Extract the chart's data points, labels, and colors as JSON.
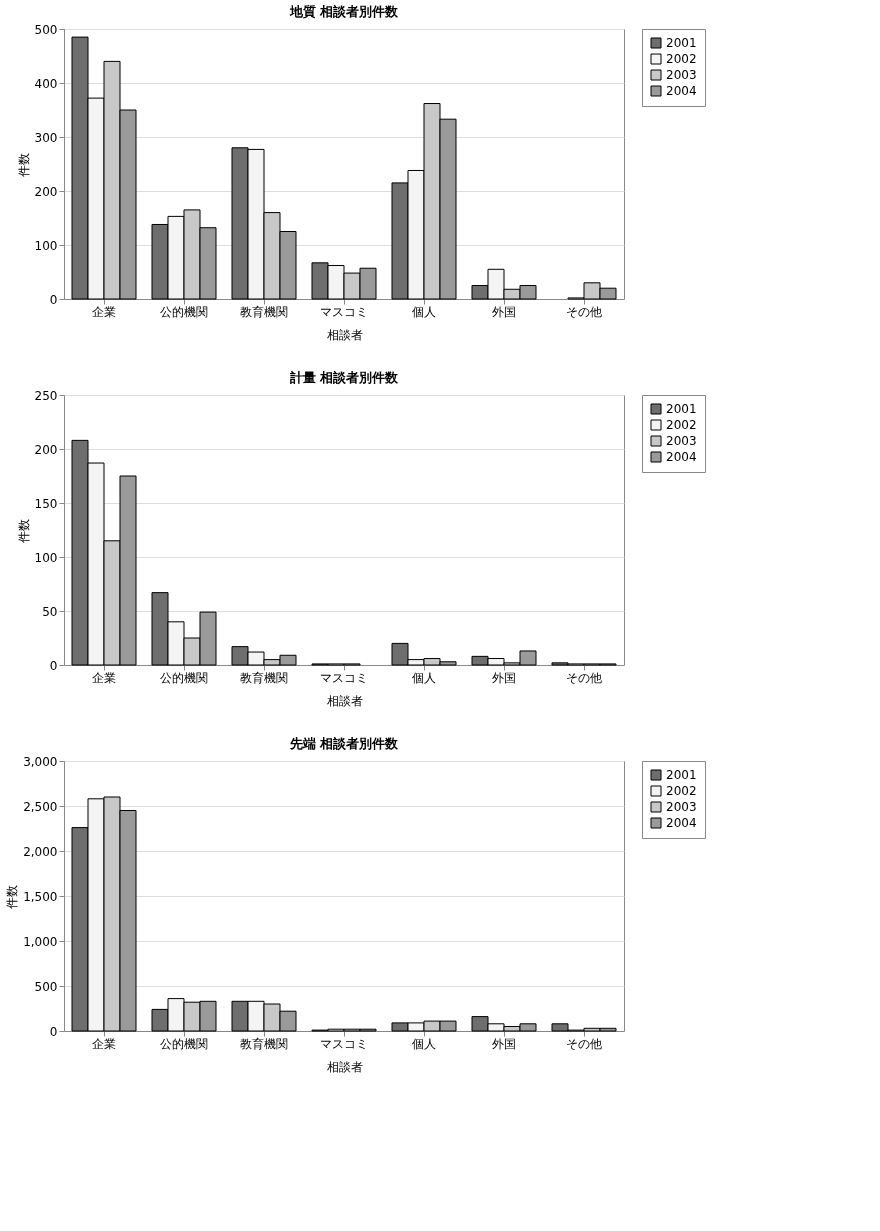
{
  "chart_data": [
    {
      "type": "bar",
      "title": "地質 相談者別件数",
      "xlabel": "相談者",
      "ylabel": "件数",
      "categories": [
        "企業",
        "公的機関",
        "教育機関",
        "マスコミ",
        "個人",
        "外国",
        "その他"
      ],
      "ylim": [
        0,
        500
      ],
      "yticks": [
        0,
        100,
        200,
        300,
        400,
        500
      ],
      "grid": "y",
      "legend": "right",
      "series": [
        {
          "name": "2001",
          "color": "#6e6e6e",
          "values": [
            485,
            138,
            280,
            67,
            215,
            25,
            0
          ]
        },
        {
          "name": "2002",
          "color": "#f4f4f4",
          "values": [
            372,
            153,
            277,
            62,
            238,
            55,
            2
          ]
        },
        {
          "name": "2003",
          "color": "#c8c8c8",
          "values": [
            440,
            165,
            160,
            48,
            362,
            18,
            30
          ]
        },
        {
          "name": "2004",
          "color": "#9a9a9a",
          "values": [
            350,
            132,
            125,
            57,
            333,
            25,
            20
          ]
        }
      ]
    },
    {
      "type": "bar",
      "title": "計量 相談者別件数",
      "xlabel": "相談者",
      "ylabel": "件数",
      "categories": [
        "企業",
        "公的機関",
        "教育機関",
        "マスコミ",
        "個人",
        "外国",
        "その他"
      ],
      "ylim": [
        0,
        250
      ],
      "yticks": [
        0,
        50,
        100,
        150,
        200,
        250
      ],
      "grid": "y",
      "legend": "right",
      "series": [
        {
          "name": "2001",
          "color": "#6e6e6e",
          "values": [
            208,
            67,
            17,
            1,
            20,
            8,
            2
          ]
        },
        {
          "name": "2002",
          "color": "#f4f4f4",
          "values": [
            187,
            40,
            12,
            1,
            5,
            6,
            1
          ]
        },
        {
          "name": "2003",
          "color": "#c8c8c8",
          "values": [
            115,
            25,
            5,
            1,
            6,
            2,
            1
          ]
        },
        {
          "name": "2004",
          "color": "#9a9a9a",
          "values": [
            175,
            49,
            9,
            0,
            3,
            13,
            1
          ]
        }
      ]
    },
    {
      "type": "bar",
      "title": "先端 相談者別件数",
      "xlabel": "相談者",
      "ylabel": "件数",
      "categories": [
        "企業",
        "公的機関",
        "教育機関",
        "マスコミ",
        "個人",
        "外国",
        "その他"
      ],
      "ylim": [
        0,
        3000
      ],
      "yticks": [
        0,
        500,
        {
          "value": 1000,
          "label": "1,000"
        },
        {
          "value": 1500,
          "label": "1,500"
        },
        {
          "value": 2000,
          "label": "2,000"
        },
        {
          "value": 2500,
          "label": "2,500"
        },
        {
          "value": 3000,
          "label": "3,000"
        }
      ],
      "grid": "y",
      "legend": "right",
      "series": [
        {
          "name": "2001",
          "color": "#6e6e6e",
          "values": [
            2260,
            240,
            330,
            10,
            90,
            160,
            80
          ]
        },
        {
          "name": "2002",
          "color": "#f4f4f4",
          "values": [
            2580,
            360,
            330,
            20,
            90,
            80,
            10
          ]
        },
        {
          "name": "2003",
          "color": "#c8c8c8",
          "values": [
            2600,
            320,
            300,
            20,
            110,
            50,
            30
          ]
        },
        {
          "name": "2004",
          "color": "#9a9a9a",
          "values": [
            2450,
            330,
            220,
            20,
            110,
            80,
            30
          ]
        }
      ]
    }
  ]
}
